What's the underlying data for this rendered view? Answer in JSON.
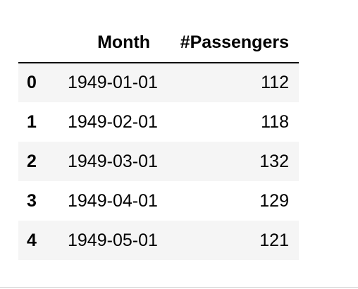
{
  "table": {
    "index_header": "",
    "columns": [
      "Month",
      "#Passengers"
    ],
    "rows": [
      {
        "index": "0",
        "month": "1949-01-01",
        "passengers": "112"
      },
      {
        "index": "1",
        "month": "1949-02-01",
        "passengers": "118"
      },
      {
        "index": "2",
        "month": "1949-03-01",
        "passengers": "132"
      },
      {
        "index": "3",
        "month": "1949-04-01",
        "passengers": "129"
      },
      {
        "index": "4",
        "month": "1949-05-01",
        "passengers": "121"
      }
    ]
  },
  "colors": {
    "odd_row_background": "#f5f5f5",
    "even_row_background": "#ffffff",
    "header_rule": "#000000",
    "bottom_divider": "#d0d0d0"
  }
}
